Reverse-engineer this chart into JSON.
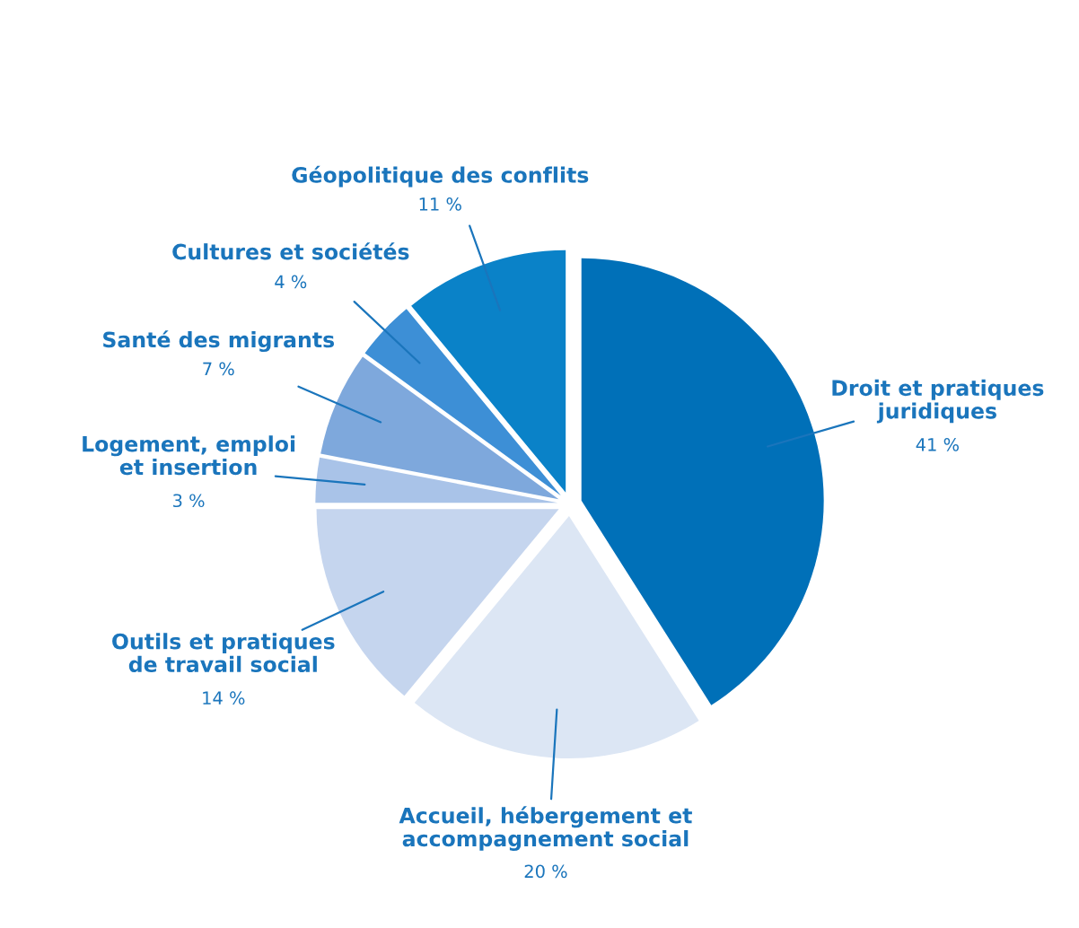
{
  "chart_data": {
    "type": "pie",
    "categories": [
      "Droit et pratiques\njuridiques",
      "Accueil, hébergement et\naccompagnement social",
      "Outils et pratiques\nde travail social",
      "Logement, emploi\net insertion",
      "Santé des migrants",
      "Cultures et sociétés",
      "Géopolitique des conflits"
    ],
    "values": [
      41,
      20,
      14,
      3,
      7,
      4,
      11
    ],
    "value_labels": [
      "41 %",
      "20 %",
      "14 %",
      "3 %",
      "7 %",
      "4 %",
      "11 %"
    ],
    "colors": [
      "#0070b8",
      "#dce6f4",
      "#c5d5ee",
      "#a9c3e8",
      "#7ea8dc",
      "#3d8fd6",
      "#0a82c8"
    ]
  }
}
